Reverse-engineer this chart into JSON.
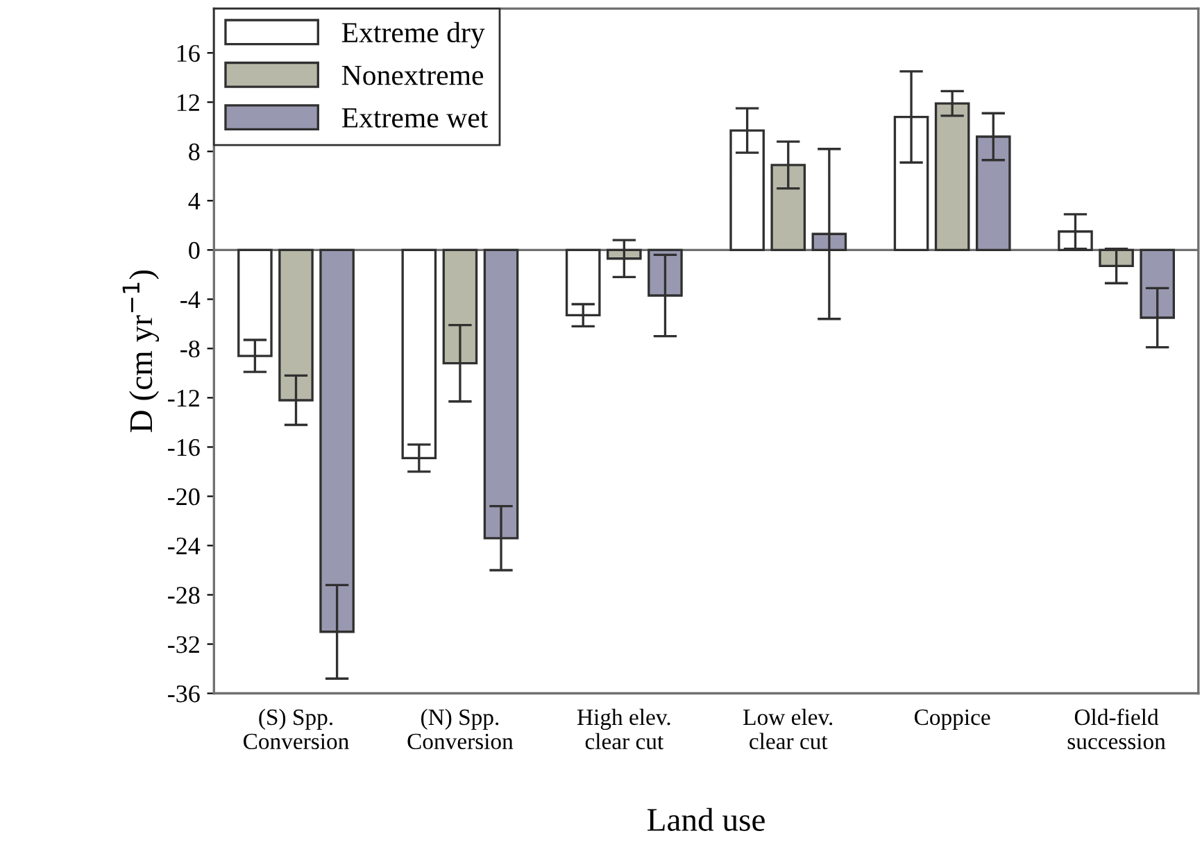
{
  "chart_data": {
    "type": "bar",
    "xlabel": "Land use",
    "ylabel": "D (cm yr$^{−1}$)",
    "categories": [
      "(S) Spp.\nConversion",
      "(N) Spp.\nConversion",
      "High elev.\nclear cut",
      "Low elev.\nclear cut",
      "Coppice",
      "Old-field\nsuccession"
    ],
    "series": [
      {
        "name": "Extreme dry",
        "color": "#ffffff",
        "values": [
          -8.6,
          -16.9,
          -5.3,
          9.7,
          10.8,
          1.5
        ],
        "errors": [
          1.3,
          1.1,
          0.9,
          1.8,
          3.7,
          1.4
        ]
      },
      {
        "name": "Nonextreme",
        "color": "#b8b8a8",
        "values": [
          -12.2,
          -9.2,
          -0.7,
          6.9,
          11.9,
          -1.3
        ],
        "errors": [
          2.0,
          3.1,
          1.5,
          1.9,
          1.0,
          1.4
        ]
      },
      {
        "name": "Extreme wet",
        "color": "#9898b0",
        "values": [
          -31.0,
          -23.4,
          -3.7,
          1.3,
          9.2,
          -5.5
        ],
        "errors": [
          3.8,
          2.6,
          3.3,
          6.9,
          1.9,
          2.4
        ]
      }
    ],
    "ylim": [
      -36,
      19.6
    ],
    "yticks": [
      -36,
      -32,
      -28,
      -24,
      -20,
      -16,
      -12,
      -8,
      -4,
      0,
      4,
      8,
      12,
      16
    ],
    "ref_lines": [
      {
        "axis": "y",
        "value": 0,
        "color": "#707070"
      }
    ],
    "legend": "top left",
    "grid": false
  }
}
